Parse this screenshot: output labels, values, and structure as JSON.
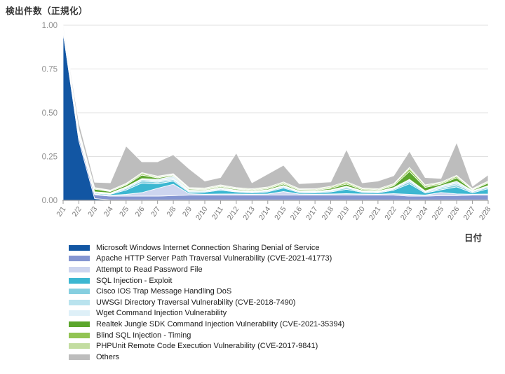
{
  "chart_data": {
    "type": "area",
    "stacked": true,
    "normalized": true,
    "title": "",
    "ylabel": "検出件数（正規化）",
    "xlabel": "日付",
    "ylim": [
      0,
      1.0
    ],
    "yticks": [
      0,
      0.25,
      0.5,
      0.75,
      1.0
    ],
    "ytick_labels": [
      "0.00",
      "0.25",
      "0.50",
      "0.75",
      "1.00"
    ],
    "grid": true,
    "legend_position": "bottom-left",
    "x": [
      "2/1",
      "2/2",
      "2/3",
      "2/4",
      "2/5",
      "2/6",
      "2/7",
      "2/8",
      "2/9",
      "2/10",
      "2/11",
      "2/12",
      "2/13",
      "2/14",
      "2/15",
      "2/16",
      "2/17",
      "2/18",
      "2/19",
      "2/20",
      "2/21",
      "2/22",
      "2/23",
      "2/24",
      "2/25",
      "2/26",
      "2/27",
      "2/28"
    ],
    "series": [
      {
        "key": "ms-windows-ics-dos",
        "name": "Microsoft Windows Internet Connection Sharing Denial of Service",
        "color": "#1256a3",
        "values": [
          0.96,
          0.34,
          0.01,
          0.002,
          0.002,
          0.002,
          0.002,
          0.002,
          0.002,
          0.002,
          0.002,
          0.002,
          0.002,
          0.002,
          0.002,
          0.002,
          0.002,
          0.002,
          0.002,
          0.002,
          0.002,
          0.002,
          0.002,
          0.002,
          0.002,
          0.002,
          0.002,
          0.002
        ]
      },
      {
        "key": "apache-path-traversal",
        "name": "Apache HTTP Server Path Traversal Vulnerability (CVE-2021-41773)",
        "color": "#8495d1",
        "values": [
          0.004,
          0.02,
          0.022,
          0.022,
          0.022,
          0.022,
          0.022,
          0.025,
          0.028,
          0.028,
          0.028,
          0.028,
          0.028,
          0.028,
          0.028,
          0.028,
          0.028,
          0.028,
          0.028,
          0.028,
          0.028,
          0.028,
          0.022,
          0.022,
          0.025,
          0.025,
          0.028,
          0.028
        ]
      },
      {
        "key": "attempt-read-password-file",
        "name": "Attempt to Read Password File",
        "color": "#cdd5ef",
        "values": [
          0.002,
          0.005,
          0.004,
          0.004,
          0.01,
          0.02,
          0.045,
          0.065,
          0.008,
          0.005,
          0.006,
          0.006,
          0.005,
          0.006,
          0.02,
          0.006,
          0.005,
          0.006,
          0.008,
          0.006,
          0.005,
          0.008,
          0.01,
          0.006,
          0.018,
          0.01,
          0.005,
          0.006
        ]
      },
      {
        "key": "sql-injection-exploit",
        "name": "SQL Injection - Exploit",
        "color": "#3cb7d1",
        "values": [
          0.005,
          0.008,
          0.005,
          0.006,
          0.025,
          0.055,
          0.025,
          0.018,
          0.008,
          0.012,
          0.022,
          0.012,
          0.008,
          0.012,
          0.02,
          0.008,
          0.008,
          0.012,
          0.025,
          0.01,
          0.008,
          0.02,
          0.06,
          0.012,
          0.015,
          0.04,
          0.008,
          0.03
        ]
      },
      {
        "key": "cisco-ios-trap-dos",
        "name": "Cisco IOS Trap Message Handling DoS",
        "color": "#86cfe0",
        "values": [
          0.002,
          0.004,
          0.003,
          0.003,
          0.008,
          0.012,
          0.01,
          0.008,
          0.005,
          0.004,
          0.006,
          0.004,
          0.004,
          0.005,
          0.006,
          0.004,
          0.004,
          0.005,
          0.008,
          0.004,
          0.004,
          0.006,
          0.012,
          0.005,
          0.008,
          0.012,
          0.005,
          0.008
        ]
      },
      {
        "key": "uwsgi-directory-traversal",
        "name": "UWSGI Directory Traversal Vulnerability (CVE-2018-7490)",
        "color": "#b9e3ee",
        "values": [
          0.003,
          0.004,
          0.003,
          0.003,
          0.006,
          0.008,
          0.008,
          0.006,
          0.004,
          0.003,
          0.005,
          0.004,
          0.003,
          0.004,
          0.005,
          0.003,
          0.003,
          0.004,
          0.006,
          0.003,
          0.003,
          0.005,
          0.008,
          0.004,
          0.008,
          0.01,
          0.004,
          0.006
        ]
      },
      {
        "key": "wget-command-injection",
        "name": "Wget Command Injection Vulnerability",
        "color": "#def0f8",
        "values": [
          0.002,
          0.003,
          0.002,
          0.002,
          0.004,
          0.005,
          0.008,
          0.015,
          0.003,
          0.002,
          0.003,
          0.002,
          0.002,
          0.003,
          0.004,
          0.002,
          0.002,
          0.003,
          0.004,
          0.002,
          0.002,
          0.004,
          0.006,
          0.003,
          0.008,
          0.01,
          0.003,
          0.004
        ]
      },
      {
        "key": "realtek-sdk-command-injection",
        "name": "Realtek Jungle SDK Command Injection Vulnerability (CVE-2021-35394)",
        "color": "#5ba62c",
        "values": [
          0.008,
          0.01,
          0.015,
          0.008,
          0.01,
          0.02,
          0.008,
          0.005,
          0.006,
          0.005,
          0.006,
          0.006,
          0.005,
          0.006,
          0.008,
          0.005,
          0.005,
          0.008,
          0.012,
          0.006,
          0.005,
          0.01,
          0.045,
          0.02,
          0.008,
          0.02,
          0.004,
          0.015
        ]
      },
      {
        "key": "blind-sql-injection-timing",
        "name": "Blind SQL Injection - Timing",
        "color": "#92c453",
        "values": [
          0.004,
          0.005,
          0.005,
          0.004,
          0.005,
          0.008,
          0.005,
          0.004,
          0.004,
          0.004,
          0.005,
          0.004,
          0.004,
          0.005,
          0.006,
          0.004,
          0.004,
          0.006,
          0.008,
          0.005,
          0.004,
          0.006,
          0.015,
          0.008,
          0.006,
          0.008,
          0.004,
          0.006
        ]
      },
      {
        "key": "phpunit-rce",
        "name": "PHPUnit Remote Code Execution Vulnerability (CVE-2017-9841)",
        "color": "#c3dda1",
        "values": [
          0.002,
          0.004,
          0.004,
          0.004,
          0.005,
          0.006,
          0.005,
          0.004,
          0.005,
          0.005,
          0.005,
          0.005,
          0.005,
          0.005,
          0.006,
          0.005,
          0.005,
          0.006,
          0.006,
          0.005,
          0.005,
          0.006,
          0.008,
          0.006,
          0.006,
          0.006,
          0.004,
          0.005
        ]
      },
      {
        "key": "others",
        "name": "Others",
        "color": "#bdbdbd",
        "values": [
          0.008,
          0.042,
          0.03,
          0.042,
          0.213,
          0.062,
          0.082,
          0.108,
          0.107,
          0.04,
          0.042,
          0.197,
          0.034,
          0.074,
          0.095,
          0.028,
          0.034,
          0.025,
          0.183,
          0.029,
          0.044,
          0.045,
          0.092,
          0.042,
          0.021,
          0.187,
          0.013,
          0.035
        ]
      }
    ],
    "axis_colors": {
      "gridline": "#e1e1e1",
      "baseline": "#9a9a9a",
      "tick": "#9a9a9a",
      "y_label_text": "#8f8f8f",
      "x_label_text": "#777777"
    }
  }
}
